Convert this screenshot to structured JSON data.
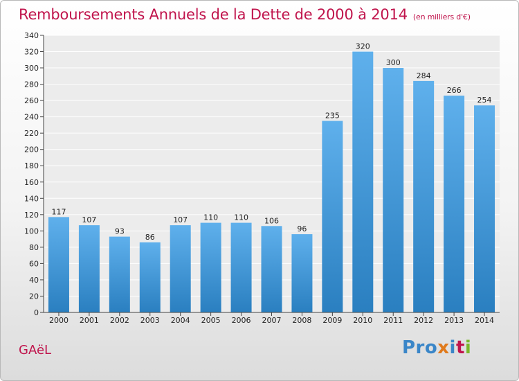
{
  "header": {
    "title": "Remboursements Annuels de la Dette de 2000 à 2014",
    "subtitle": "(en milliers d'€)"
  },
  "footer": {
    "place": "GAëL",
    "brand_letters": [
      "Pro",
      "x",
      "i",
      "t",
      "i"
    ],
    "brand_colors": [
      "#3a86c8",
      "#e07a1c",
      "#3a86c8",
      "#c0144c",
      "#7ab82a"
    ]
  },
  "colors": {
    "title": "#c0144c",
    "bar_top": "#5fb0ec",
    "bar_bottom": "#2a7fc0",
    "grid": "#ffffff"
  },
  "chart_data": {
    "type": "bar",
    "title": "Remboursements Annuels de la Dette de 2000 à 2014",
    "subtitle": "(en milliers d'€)",
    "categories": [
      "2000",
      "2001",
      "2002",
      "2003",
      "2004",
      "2005",
      "2006",
      "2007",
      "2008",
      "2009",
      "2010",
      "2011",
      "2012",
      "2013",
      "2014"
    ],
    "values": [
      117,
      107,
      93,
      86,
      107,
      110,
      110,
      106,
      96,
      235,
      320,
      300,
      284,
      266,
      254
    ],
    "ylim": [
      0,
      340
    ],
    "yticks": [
      0,
      20,
      40,
      60,
      80,
      100,
      120,
      140,
      160,
      180,
      200,
      220,
      240,
      260,
      280,
      300,
      320,
      340
    ],
    "grid": true,
    "data_labels": true
  }
}
